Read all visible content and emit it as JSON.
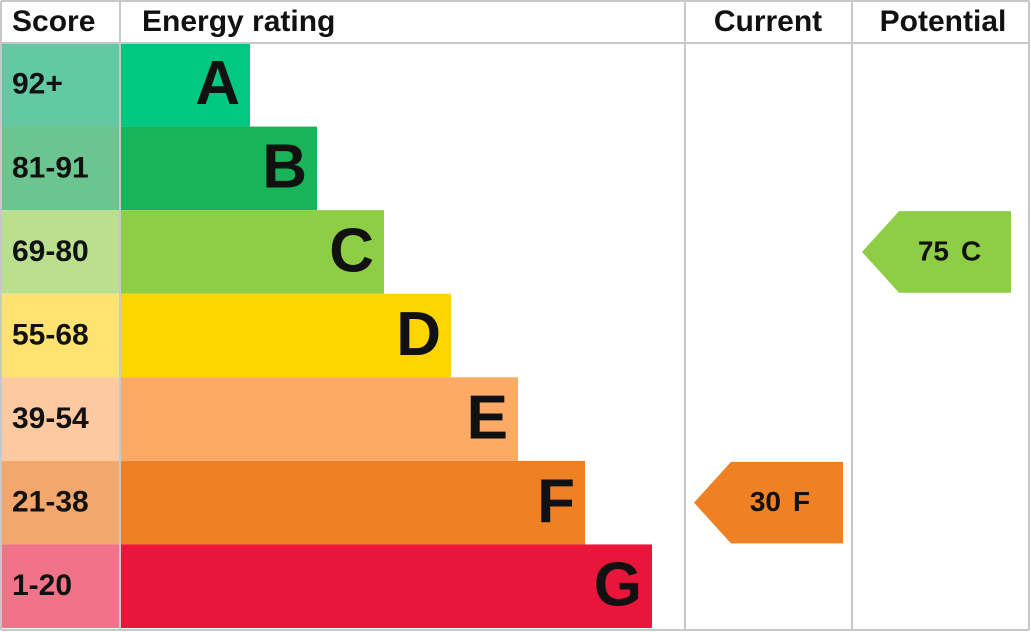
{
  "header": {
    "score": "Score",
    "rating": "Energy rating",
    "current": "Current",
    "potential": "Potential"
  },
  "bands": [
    {
      "score": "92+",
      "letter": "A",
      "color": "#00c781",
      "score_color": "#63c9a4"
    },
    {
      "score": "81-91",
      "letter": "B",
      "color": "#19b459",
      "score_color": "#6cc58f"
    },
    {
      "score": "69-80",
      "letter": "C",
      "color": "#8dce46",
      "score_color": "#b9df8f"
    },
    {
      "score": "55-68",
      "letter": "D",
      "color": "#ffd500",
      "score_color": "#ffe270"
    },
    {
      "score": "39-54",
      "letter": "E",
      "color": "#fcaa65",
      "score_color": "#fdc9a1"
    },
    {
      "score": "21-38",
      "letter": "F",
      "color": "#ef8023",
      "score_color": "#f4a76d"
    },
    {
      "score": "1-20",
      "letter": "G",
      "color": "#e9153b",
      "score_color": "#f07389"
    }
  ],
  "current": {
    "value": 30,
    "letter": "F"
  },
  "potential": {
    "value": 75,
    "letter": "C"
  }
}
